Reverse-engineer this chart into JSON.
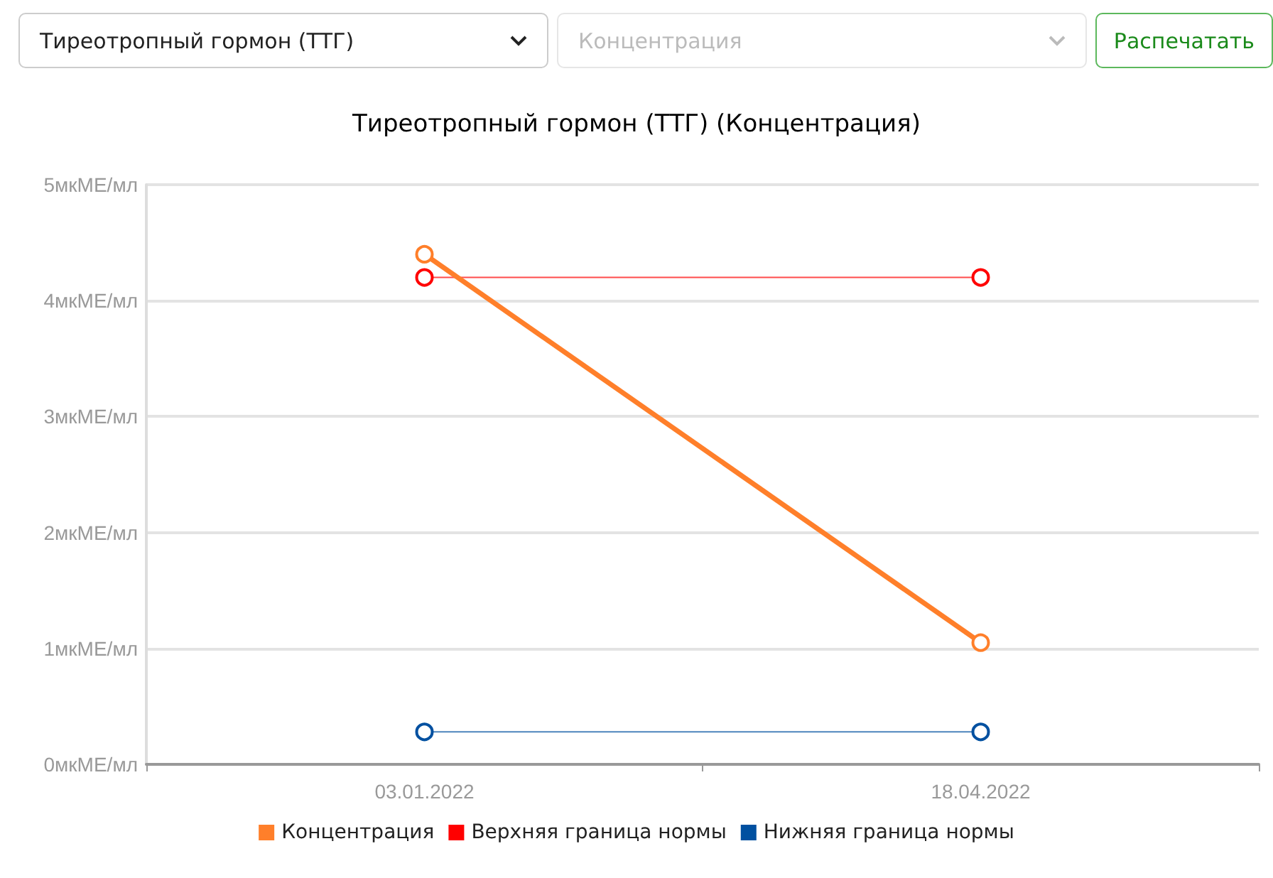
{
  "chart_data": {
    "type": "line",
    "title": "Тиреотропный гормон (ТТГ) (Концентрация)",
    "annotations": [
      "Тиреотропный гормон (ТТГ)",
      "Концентрация",
      "Распечатать"
    ],
    "categories": [
      "03.01.2022",
      "18.04.2022"
    ],
    "series": [
      {
        "name": "Концентрация",
        "color": "#ff7f2a",
        "values": [
          4.4,
          1.05
        ]
      },
      {
        "name": "Верхняя граница нормы",
        "color": "#ff0000",
        "values": [
          4.2,
          4.2
        ]
      },
      {
        "name": "Нижняя граница нормы",
        "color": "#0050a0",
        "values": [
          0.28,
          0.28
        ]
      }
    ],
    "ylim": [
      0,
      5
    ],
    "yticks": [
      {
        "value": 0,
        "label": "0мкМЕ/мл"
      },
      {
        "value": 1,
        "label": "1мкМЕ/мл"
      },
      {
        "value": 2,
        "label": "2мкМЕ/мл"
      },
      {
        "value": 3,
        "label": "3мкМЕ/мл"
      },
      {
        "value": 4,
        "label": "4мкМЕ/мл"
      },
      {
        "value": 5,
        "label": "5мкМЕ/мл"
      }
    ],
    "grid": "y",
    "legend": "bottom",
    "marker": "circle",
    "line_style": "solid"
  }
}
